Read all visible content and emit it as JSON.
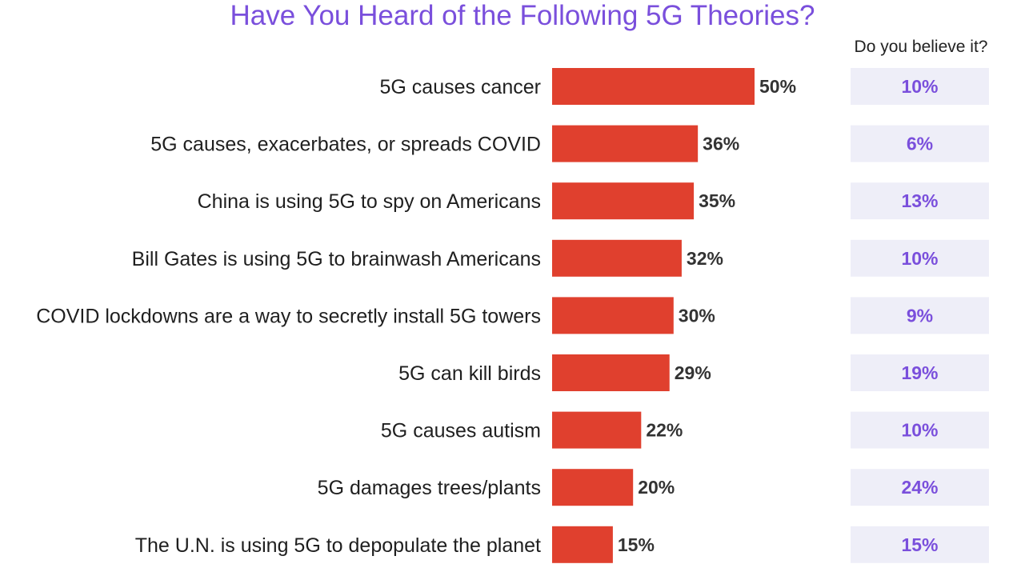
{
  "chart_data": {
    "type": "bar",
    "orientation": "horizontal",
    "title": "Have You Heard of the Following 5G Theories?",
    "categories": [
      "5G causes cancer",
      "5G causes, exacerbates, or spreads COVID",
      "China is using 5G to spy on Americans",
      "Bill Gates is using 5G to brainwash Americans",
      "COVID lockdowns are a way to secretly install 5G towers",
      "5G can kill birds",
      "5G causes autism",
      "5G damages trees/plants",
      "The U.N. is using 5G to depopulate the planet"
    ],
    "values": [
      50,
      36,
      35,
      32,
      30,
      29,
      22,
      20,
      15
    ],
    "value_labels": [
      "50%",
      "36%",
      "35%",
      "32%",
      "30%",
      "29%",
      "22%",
      "20%",
      "15%"
    ],
    "believe_header": "Do you believe it?",
    "believe_values": [
      10,
      6,
      13,
      10,
      9,
      19,
      10,
      24,
      15
    ],
    "believe_labels": [
      "10%",
      "6%",
      "13%",
      "10%",
      "9%",
      "19%",
      "10%",
      "24%",
      "15%"
    ],
    "unit": "%",
    "grid": false,
    "colors": {
      "bar": "#e0402e",
      "title": "#7a4fdc",
      "believe_text": "#7a4fdc",
      "believe_box": "#eeeef8"
    }
  }
}
